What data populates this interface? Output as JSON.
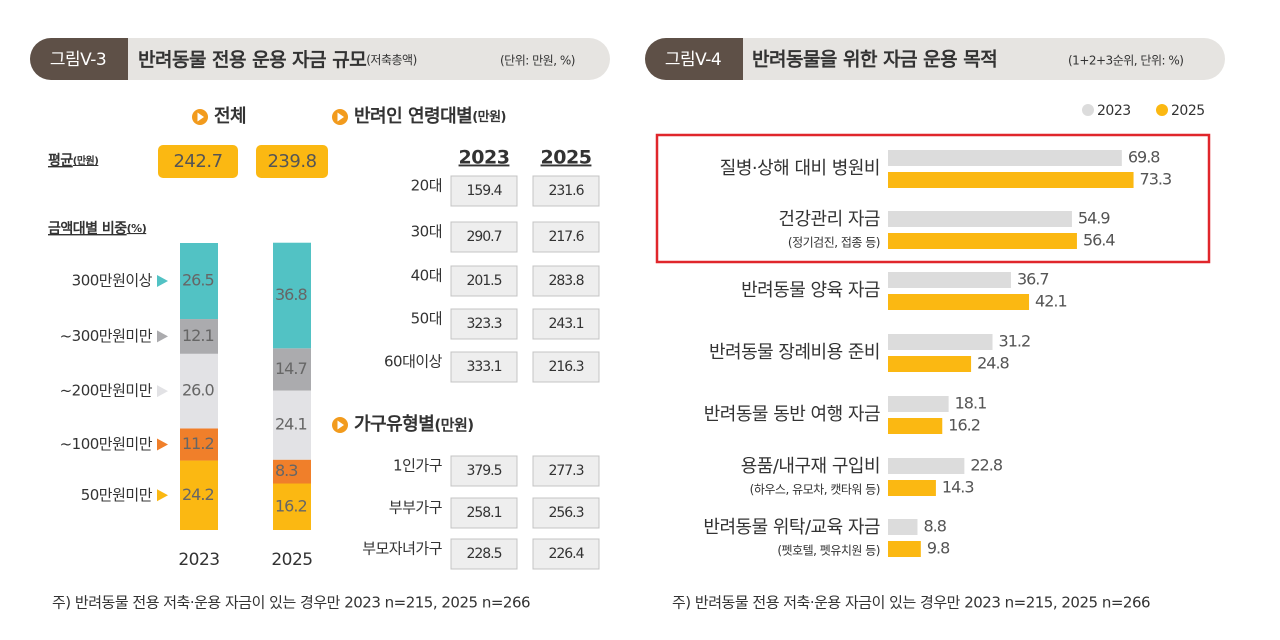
{
  "left": {
    "figure_label": "그림V-3",
    "title": "반려동물 전용 운용 자금 규모",
    "title_note": "(저축총액)",
    "unit": "(단위: 만원, %)",
    "overall": {
      "heading": "전체",
      "average_label": "평균",
      "average_unit": "(만원)",
      "averages": [
        242.7,
        239.8
      ]
    },
    "share": {
      "heading": "금액대별 비중",
      "heading_unit": "(%)",
      "years": [
        "2023",
        "2025"
      ],
      "segments": [
        {
          "name": "50만원미만",
          "color": "#fbb812",
          "values": [
            24.2,
            16.2
          ]
        },
        {
          "name": "~100만원미만",
          "color": "#f07f2a",
          "values": [
            11.2,
            8.3
          ]
        },
        {
          "name": "~200만원미만",
          "color": "#e2e2e5",
          "values": [
            26.0,
            24.1
          ],
          "value_labels": [
            "26.0",
            "24.1"
          ]
        },
        {
          "name": "~300만원미만",
          "color": "#ababae",
          "values": [
            12.1,
            14.7
          ]
        },
        {
          "name": "300만원이상",
          "color": "#52c2c4",
          "values": [
            26.5,
            36.8
          ]
        }
      ]
    },
    "age": {
      "heading": "반려인 연령대별",
      "heading_unit": "(만원)",
      "years": [
        "2023",
        "2025"
      ],
      "rows": [
        {
          "label": "20대",
          "values": [
            159.4,
            231.6
          ]
        },
        {
          "label": "30대",
          "values": [
            290.7,
            217.6
          ]
        },
        {
          "label": "40대",
          "values": [
            201.5,
            283.8
          ]
        },
        {
          "label": "50대",
          "values": [
            323.3,
            243.1
          ]
        },
        {
          "label": "60대이상",
          "values": [
            333.1,
            216.3
          ]
        }
      ]
    },
    "household": {
      "heading": "가구유형별",
      "heading_unit": "(만원)",
      "rows": [
        {
          "label": "1인가구",
          "values": [
            379.5,
            277.3
          ]
        },
        {
          "label": "부부가구",
          "values": [
            258.1,
            256.3
          ]
        },
        {
          "label": "부모자녀가구",
          "values": [
            228.5,
            226.4
          ]
        }
      ]
    },
    "footnote": "주) 반려동물 전용 저축·운용 자금이 있는 경우만 2023 n=215, 2025 n=266"
  },
  "right": {
    "figure_label": "그림V-4",
    "title": "반려동물을 위한 자금 운용 목적",
    "unit": "(1+2+3순위, 단위: %)",
    "categories": [
      {
        "name": "질병·상해 대비 병원비"
      },
      {
        "name": "건강관리 자금",
        "sub": "(정기검진, 접종 등)"
      },
      {
        "name": "반려동물 양육 자금"
      },
      {
        "name": "반려동물 장례비용 준비"
      },
      {
        "name": "반려동물 동반 여행 자금"
      },
      {
        "name": "용품/내구재 구입비",
        "sub": "(하우스, 유모차, 캣타워 등)"
      },
      {
        "name": "반려동물 위탁/교육 자금",
        "sub": "(펫호텔, 펫유치원 등)"
      }
    ],
    "series": [
      {
        "name": "2023",
        "color": "#dcdcdc",
        "values": [
          69.8,
          54.9,
          36.7,
          31.2,
          18.1,
          22.8,
          8.8
        ]
      },
      {
        "name": "2025",
        "color": "#fbb812",
        "values": [
          73.3,
          56.4,
          42.1,
          24.8,
          16.2,
          14.3,
          9.8
        ]
      }
    ],
    "footnote": "주) 반려동물 전용 저축·운용 자금이 있는 경우만 2023 n=215, 2025 n=266"
  }
}
